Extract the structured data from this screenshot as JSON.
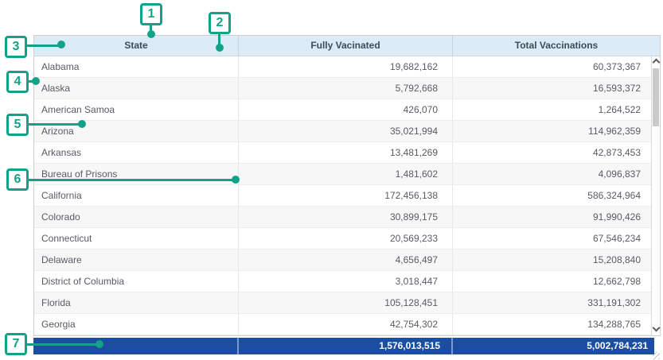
{
  "annotations": {
    "items": [
      {
        "label": "1"
      },
      {
        "label": "2"
      },
      {
        "label": "3"
      },
      {
        "label": "4"
      },
      {
        "label": "5"
      },
      {
        "label": "6"
      },
      {
        "label": "7"
      }
    ]
  },
  "table": {
    "columns": [
      {
        "label": "State"
      },
      {
        "label": "Fully Vacinated"
      },
      {
        "label": "Total Vaccinations"
      }
    ],
    "rows": [
      [
        "Alabama",
        "19,682,162",
        "60,373,367"
      ],
      [
        "Alaska",
        "5,792,668",
        "16,593,372"
      ],
      [
        "American Samoa",
        "426,070",
        "1,264,522"
      ],
      [
        "Arizona",
        "35,021,994",
        "114,962,359"
      ],
      [
        "Arkansas",
        "13,481,269",
        "42,873,453"
      ],
      [
        "Bureau of Prisons",
        "1,481,602",
        "4,096,837"
      ],
      [
        "California",
        "172,456,138",
        "586,324,964"
      ],
      [
        "Colorado",
        "30,899,175",
        "91,990,426"
      ],
      [
        "Connecticut",
        "20,569,233",
        "67,546,234"
      ],
      [
        "Delaware",
        "4,656,497",
        "15,208,840"
      ],
      [
        "District of Columbia",
        "3,018,447",
        "12,662,798"
      ],
      [
        "Florida",
        "105,128,451",
        "331,191,302"
      ],
      [
        "Georgia",
        "42,754,302",
        "134,288,765"
      ]
    ],
    "totals": {
      "state": "",
      "fully": "1,576,013,515",
      "total": "5,002,784,231"
    }
  },
  "icons": {
    "scroll_up": "chevron-up-icon",
    "scroll_down": "chevron-down-icon"
  },
  "colors": {
    "accent_teal": "#13a287",
    "header_bg": "#dcebf8",
    "header_text": "#3b4b5c",
    "body_text": "#565c63",
    "total_row_bg": "#1b4da0",
    "total_row_text": "#ffffff"
  }
}
